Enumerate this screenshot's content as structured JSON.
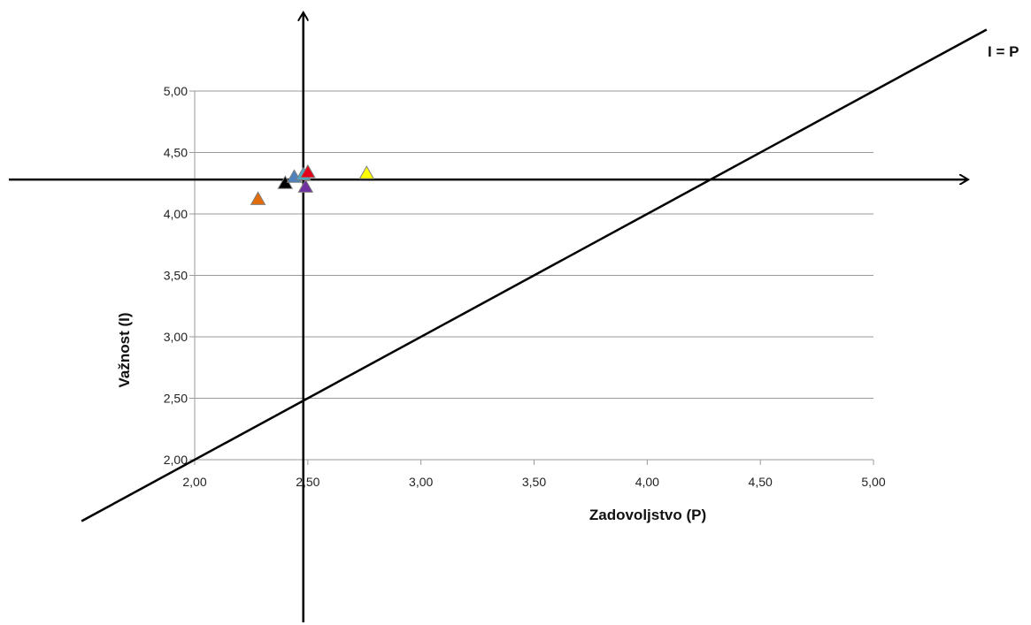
{
  "chart_data": {
    "type": "scatter",
    "title": "",
    "xlabel": "Zadovoljstvo (P)",
    "ylabel": "Važnost (I)",
    "xlim": [
      2.0,
      5.0
    ],
    "ylim": [
      2.0,
      5.0
    ],
    "x_ticks": [
      "2,00",
      "2,50",
      "3,00",
      "3,50",
      "4,00",
      "4,50",
      "5,00"
    ],
    "y_ticks": [
      "2,00",
      "2,50",
      "3,00",
      "3,50",
      "4,00",
      "4,50",
      "5,00"
    ],
    "grid": "horizontal",
    "marker": "triangle",
    "reference_line": {
      "label": "I = P",
      "slope": 1,
      "intercept": 0
    },
    "quadrant_axes": {
      "x": 2.48,
      "y": 4.28
    },
    "points": [
      {
        "x": 2.28,
        "y": 4.12,
        "color": "#E36C0A"
      },
      {
        "x": 2.4,
        "y": 4.25,
        "color": "#000000"
      },
      {
        "x": 2.44,
        "y": 4.3,
        "color": "#4F81BD"
      },
      {
        "x": 2.48,
        "y": 4.32,
        "color": "#4BACC6"
      },
      {
        "x": 2.5,
        "y": 4.34,
        "color": "#E2001A"
      },
      {
        "x": 2.49,
        "y": 4.22,
        "color": "#7030A0"
      },
      {
        "x": 2.76,
        "y": 4.33,
        "color": "#FFFF00"
      }
    ]
  }
}
